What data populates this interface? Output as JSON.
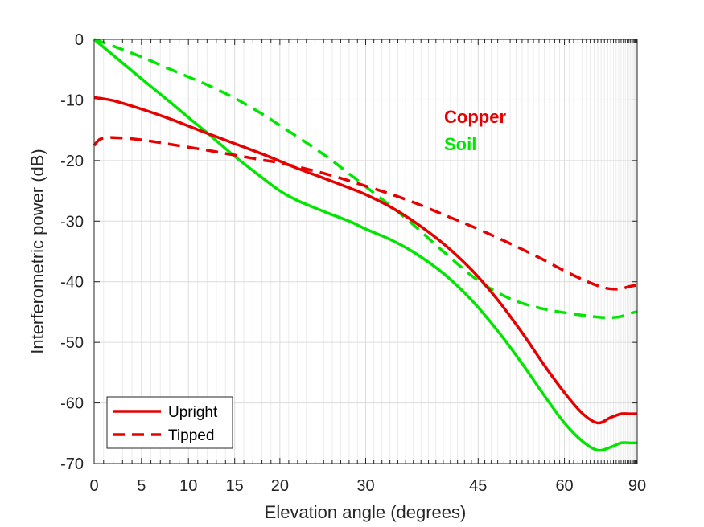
{
  "chart_data": {
    "type": "line",
    "title": "",
    "xlabel": "Elevation angle (degrees)",
    "ylabel": "Interferometric power (dB)",
    "x_scale": "sin",
    "xlim": [
      0,
      90
    ],
    "ylim": [
      -70,
      0
    ],
    "x_ticks": [
      0,
      5,
      10,
      15,
      20,
      30,
      45,
      60,
      90
    ],
    "y_ticks": [
      0,
      -10,
      -20,
      -30,
      -40,
      -50,
      -60,
      -70
    ],
    "x_minor_ticks": [
      1,
      2,
      3,
      4,
      6,
      7,
      8,
      9,
      11,
      12,
      13,
      14,
      16,
      17,
      18,
      19,
      21,
      22,
      23,
      24,
      25,
      26,
      27,
      28,
      29,
      31,
      32,
      33,
      34,
      35,
      36,
      37,
      38,
      39,
      40,
      41,
      42,
      43,
      44,
      46,
      47,
      48,
      49,
      50,
      51,
      52,
      53,
      54,
      55,
      56,
      57,
      58,
      59,
      61,
      62,
      63,
      64,
      65,
      66,
      67,
      68,
      69,
      70,
      71,
      72,
      73,
      74,
      75,
      76,
      77,
      78,
      79,
      80,
      81,
      82,
      83,
      84,
      85,
      86,
      87,
      88,
      89
    ],
    "grid": true,
    "legend_position": "bottom-left",
    "legend": [
      {
        "label": "Upright",
        "style": "solid"
      },
      {
        "label": "Tipped",
        "style": "dashed"
      }
    ],
    "annotations": [
      {
        "text": "Copper",
        "color": "#e60000"
      },
      {
        "text": "Soil",
        "color": "#00e600"
      }
    ],
    "colors": {
      "copper": "#e60000",
      "soil": "#00e600"
    },
    "series": [
      {
        "material": "copper",
        "style": "solid",
        "x": [
          0,
          2,
          5,
          8,
          10,
          12,
          15,
          18,
          20,
          22,
          25,
          28,
          30,
          33,
          36,
          40,
          44,
          48,
          52,
          56,
          60,
          64,
          68,
          72,
          76,
          80,
          84,
          87,
          90
        ],
        "y": [
          -9.6,
          -10.1,
          -11.5,
          -13.1,
          -14.3,
          -15.5,
          -17.2,
          -18.9,
          -20.1,
          -21.3,
          -22.9,
          -24.5,
          -25.6,
          -27.6,
          -30,
          -33.7,
          -38,
          -43,
          -48.4,
          -53.8,
          -58.3,
          -61.7,
          -63.3,
          -62.4,
          -61.8,
          -61.8,
          -61.8,
          -61.8,
          -61.8
        ]
      },
      {
        "material": "copper",
        "style": "dashed",
        "x": [
          0,
          0.5,
          1,
          2,
          4,
          6,
          8,
          10,
          12,
          15,
          18,
          20,
          25,
          30,
          35,
          40,
          45,
          50,
          55,
          60,
          65,
          70,
          75,
          80,
          85,
          90
        ],
        "y": [
          -17.5,
          -16.6,
          -16.3,
          -16.2,
          -16.4,
          -16.8,
          -17.3,
          -17.8,
          -18.3,
          -19.1,
          -19.9,
          -20.4,
          -22.1,
          -24.2,
          -26.4,
          -28.9,
          -31.3,
          -33.7,
          -36,
          -38.2,
          -39.9,
          -41,
          -41.2,
          -40.8,
          -40.6,
          -40.6
        ]
      },
      {
        "material": "soil",
        "style": "solid",
        "x": [
          0,
          2,
          5,
          8,
          10,
          12,
          15,
          18,
          20,
          22,
          25,
          28,
          30,
          33,
          36,
          40,
          44,
          48,
          52,
          56,
          60,
          64,
          68,
          72,
          76,
          80,
          84,
          87,
          90
        ],
        "y": [
          0,
          -2.6,
          -6.5,
          -10.3,
          -12.9,
          -15.4,
          -19.3,
          -22.8,
          -25,
          -26.6,
          -28.4,
          -30,
          -31.3,
          -33,
          -35.1,
          -38.6,
          -43,
          -48.1,
          -53.5,
          -58.8,
          -63.3,
          -66.3,
          -67.8,
          -67.3,
          -66.6,
          -66.6,
          -66.6,
          -66.6,
          -66.6
        ]
      },
      {
        "material": "soil",
        "style": "dashed",
        "x": [
          0,
          2,
          5,
          8,
          10,
          12,
          15,
          18,
          20,
          25,
          30,
          35,
          40,
          45,
          50,
          55,
          60,
          65,
          70,
          75,
          80,
          85,
          90
        ],
        "y": [
          0,
          -1.1,
          -2.9,
          -4.9,
          -6.2,
          -7.5,
          -9.7,
          -12.3,
          -14.2,
          -19,
          -24.3,
          -29.5,
          -35,
          -39.8,
          -42.8,
          -44.3,
          -45.1,
          -45.6,
          -45.9,
          -45.8,
          -45.3,
          -45,
          -45
        ]
      }
    ]
  }
}
